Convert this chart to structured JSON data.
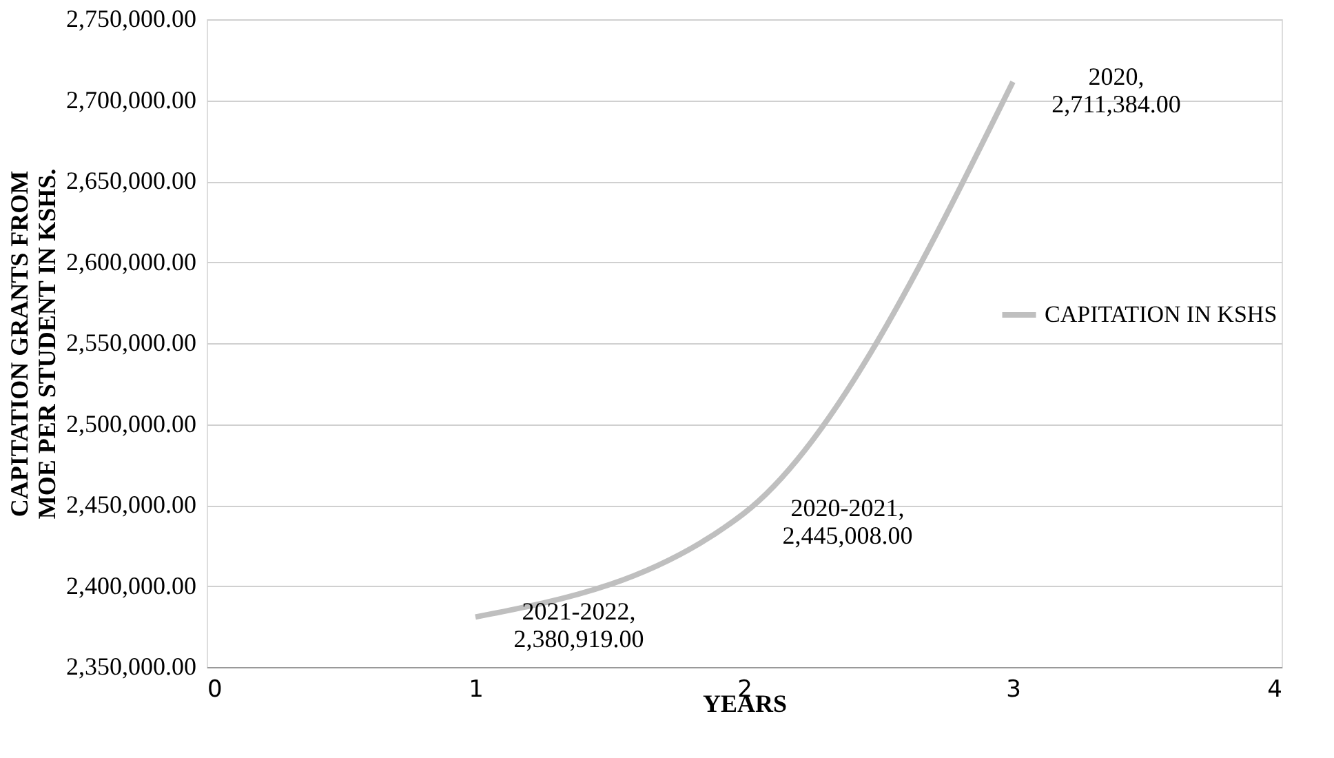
{
  "chart_data": {
    "type": "line",
    "xlabel": "YEARS",
    "ylabel": "CAPITATION GRANTS FROM\nMOE PER STUDENT IN KSHS.",
    "x": [
      1,
      2,
      3
    ],
    "series": [
      {
        "name": "CAPITATION IN KSHS",
        "color": "#bfbfbf",
        "values": [
          2380919,
          2445008,
          2711384
        ],
        "value_labels": [
          "2021-2022,\n2,380,919.00",
          "2020-2021,\n2,445,008.00",
          "2020,\n2,711,384.00"
        ]
      }
    ],
    "xlim": [
      0,
      4
    ],
    "xticks": [
      0,
      1,
      2,
      3,
      4
    ],
    "ylim": [
      2350000,
      2750000
    ],
    "yticks": [
      {
        "value": 2350000,
        "label": "2,350,000.00"
      },
      {
        "value": 2400000,
        "label": "2,400,000.00"
      },
      {
        "value": 2450000,
        "label": "2,450,000.00"
      },
      {
        "value": 2500000,
        "label": "2,500,000.00"
      },
      {
        "value": 2550000,
        "label": "2,550,000.00"
      },
      {
        "value": 2600000,
        "label": "2,600,000.00"
      },
      {
        "value": 2650000,
        "label": "2,650,000.00"
      },
      {
        "value": 2700000,
        "label": "2,700,000.00"
      },
      {
        "value": 2750000,
        "label": "2,750,000.00"
      }
    ],
    "grid": "y",
    "legend": "right",
    "marker": "none",
    "line_style": "solid"
  }
}
